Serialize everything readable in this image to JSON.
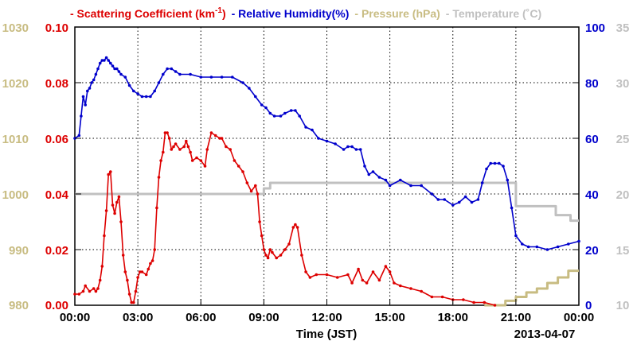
{
  "chart_data": {
    "type": "line",
    "legend": [
      {
        "text": "- Scattering Coefficient (km",
        "sup": "-1",
        "tail": ")",
        "color": "#dd0000"
      },
      {
        "text": "- Relative Humidity(%)",
        "color": "#0000cc"
      },
      {
        "text": "- Pressure (hPa)",
        "color": "#c8bc82"
      },
      {
        "text": "- Temperature (˚C)",
        "color": "#c0c0c0"
      }
    ],
    "xlabel": "Time (JST)",
    "date_label": "2013-04-07",
    "x_tick_labels": [
      "00:00",
      "03:00",
      "06:00",
      "09:00",
      "12:00",
      "15:00",
      "18:00",
      "21:00",
      "00:00"
    ],
    "x_ticks_hours": [
      0,
      3,
      6,
      9,
      12,
      15,
      18,
      21,
      24
    ],
    "xlim_hours": [
      0,
      24
    ],
    "grid": true,
    "axes": {
      "scattering": {
        "range": [
          0,
          0.1
        ],
        "ticks": [
          "0.00",
          "0.02",
          "0.04",
          "0.06",
          "0.08",
          "0.10"
        ],
        "side": "left",
        "color": "#dd0000"
      },
      "pressure": {
        "range": [
          980,
          1030
        ],
        "ticks": [
          "980",
          "990",
          "1000",
          "1010",
          "1020",
          "1030"
        ],
        "side": "left-outer",
        "color": "#c8bc82"
      },
      "humidity": {
        "range": [
          0,
          100
        ],
        "ticks": [
          "0",
          "20",
          "40",
          "60",
          "80",
          "100"
        ],
        "side": "right",
        "color": "#0000cc"
      },
      "temperature": {
        "range": [
          10,
          35
        ],
        "ticks": [
          "10",
          "15",
          "20",
          "25",
          "30",
          "35"
        ],
        "side": "right-outer",
        "color": "#c0c0c0"
      }
    },
    "series": [
      {
        "key": "scattering",
        "axis": "scattering",
        "color": "#dd0000",
        "markers": true,
        "x": [
          0,
          0.2,
          0.4,
          0.5,
          0.7,
          0.9,
          1.0,
          1.1,
          1.2,
          1.3,
          1.4,
          1.5,
          1.6,
          1.7,
          1.8,
          1.9,
          2.0,
          2.1,
          2.2,
          2.3,
          2.4,
          2.5,
          2.6,
          2.7,
          2.8,
          2.9,
          3.0,
          3.1,
          3.2,
          3.4,
          3.5,
          3.6,
          3.7,
          3.8,
          3.9,
          4.0,
          4.1,
          4.2,
          4.3,
          4.4,
          4.5,
          4.6,
          4.7,
          4.8,
          5.0,
          5.2,
          5.3,
          5.4,
          5.5,
          5.6,
          5.8,
          6.0,
          6.2,
          6.3,
          6.5,
          6.7,
          6.9,
          7.0,
          7.2,
          7.4,
          7.6,
          7.8,
          8.0,
          8.2,
          8.4,
          8.6,
          8.7,
          8.8,
          8.9,
          9.0,
          9.1,
          9.2,
          9.3,
          9.4,
          9.6,
          9.8,
          10.0,
          10.2,
          10.4,
          10.5,
          10.6,
          10.8,
          11.0,
          11.2,
          11.5,
          12.0,
          12.5,
          13.0,
          13.2,
          13.5,
          13.7,
          13.9,
          14.2,
          14.5,
          14.8,
          15.0,
          15.2,
          15.5,
          16.0,
          16.5,
          17.0,
          17.5,
          18.0,
          18.5,
          19.0,
          19.5,
          20.0
        ],
        "y": [
          0.004,
          0.004,
          0.005,
          0.007,
          0.005,
          0.006,
          0.005,
          0.006,
          0.009,
          0.014,
          0.025,
          0.034,
          0.047,
          0.048,
          0.036,
          0.033,
          0.037,
          0.039,
          0.03,
          0.018,
          0.012,
          0.009,
          0.004,
          0.001,
          0.001,
          0.005,
          0.01,
          0.012,
          0.012,
          0.011,
          0.013,
          0.015,
          0.016,
          0.02,
          0.035,
          0.046,
          0.052,
          0.055,
          0.062,
          0.062,
          0.06,
          0.056,
          0.057,
          0.058,
          0.056,
          0.057,
          0.059,
          0.057,
          0.055,
          0.052,
          0.053,
          0.052,
          0.05,
          0.056,
          0.062,
          0.061,
          0.06,
          0.06,
          0.057,
          0.056,
          0.052,
          0.05,
          0.048,
          0.044,
          0.041,
          0.043,
          0.04,
          0.03,
          0.025,
          0.02,
          0.018,
          0.017,
          0.02,
          0.019,
          0.017,
          0.018,
          0.02,
          0.022,
          0.028,
          0.029,
          0.028,
          0.018,
          0.012,
          0.01,
          0.011,
          0.011,
          0.01,
          0.011,
          0.008,
          0.013,
          0.009,
          0.008,
          0.012,
          0.009,
          0.014,
          0.012,
          0.008,
          0.007,
          0.006,
          0.005,
          0.003,
          0.003,
          0.002,
          0.002,
          0.001,
          0.001,
          0.0
        ]
      },
      {
        "key": "humidity",
        "axis": "humidity",
        "color": "#0000cc",
        "markers": true,
        "x": [
          0,
          0.2,
          0.3,
          0.4,
          0.5,
          0.6,
          0.7,
          0.8,
          0.9,
          1.0,
          1.1,
          1.2,
          1.3,
          1.4,
          1.5,
          1.6,
          1.7,
          1.8,
          1.9,
          2.0,
          2.1,
          2.2,
          2.4,
          2.6,
          2.8,
          3.0,
          3.2,
          3.4,
          3.6,
          3.8,
          4.0,
          4.2,
          4.4,
          4.6,
          4.8,
          5.0,
          5.5,
          6.0,
          6.5,
          7.0,
          7.5,
          8.0,
          8.3,
          8.6,
          8.9,
          9.1,
          9.3,
          9.5,
          9.8,
          10.0,
          10.3,
          10.5,
          10.7,
          11.0,
          11.3,
          11.6,
          12.0,
          12.4,
          12.8,
          13.0,
          13.2,
          13.4,
          13.6,
          13.8,
          14.0,
          14.2,
          14.5,
          14.8,
          15.0,
          15.5,
          16.0,
          16.5,
          17.0,
          17.3,
          17.6,
          18.0,
          18.3,
          18.6,
          18.9,
          19.2,
          19.4,
          19.6,
          19.8,
          20.0,
          20.2,
          20.4,
          20.6,
          20.8,
          21.0,
          21.3,
          21.6,
          22.0,
          22.5,
          23.0,
          23.5,
          24.0
        ],
        "y": [
          60,
          61,
          68,
          75,
          72,
          77,
          78,
          80,
          81,
          83,
          85,
          87,
          88,
          88,
          89,
          88,
          87,
          86,
          85,
          85,
          84,
          83,
          82,
          79,
          77,
          76,
          75,
          75,
          75,
          77,
          80,
          83,
          85,
          85,
          84,
          83,
          83,
          82,
          82,
          82,
          82,
          80,
          78,
          75,
          72,
          71,
          69,
          68,
          68,
          69,
          70,
          70,
          68,
          64,
          63,
          60,
          59,
          58,
          56,
          57,
          57,
          56,
          56,
          50,
          47,
          48,
          46,
          45,
          43,
          45,
          43,
          43,
          40,
          38,
          38,
          36,
          37,
          39,
          37,
          38,
          44,
          49,
          51,
          51,
          51,
          50,
          45,
          35,
          25,
          22,
          21,
          21,
          20,
          21,
          22,
          23
        ]
      },
      {
        "key": "pressure",
        "axis": "pressure",
        "color": "#c8bc82",
        "markers": false,
        "x": [
          19.5,
          20.5,
          20.5,
          21.0,
          21.0,
          21.5,
          21.5,
          22.0,
          22.0,
          22.5,
          22.5,
          23.0,
          23.0,
          23.5,
          23.5,
          24.0
        ],
        "y": [
          980.0,
          980.0,
          980.8,
          980.8,
          981.5,
          981.5,
          982.3,
          982.3,
          983.0,
          983.0,
          984.0,
          984.0,
          985.0,
          985.0,
          986.2,
          986.2
        ]
      },
      {
        "key": "temperature",
        "axis": "temperature",
        "color": "#c0c0c0",
        "markers": false,
        "x": [
          0,
          9.0,
          9.0,
          9.3,
          9.3,
          21.0,
          21.0,
          22.9,
          22.9,
          23.6,
          23.6,
          24.0
        ],
        "y": [
          20,
          20,
          20.5,
          20.5,
          21,
          21,
          18.9,
          18.9,
          18.1,
          18.1,
          17.6,
          17.6
        ]
      }
    ]
  }
}
